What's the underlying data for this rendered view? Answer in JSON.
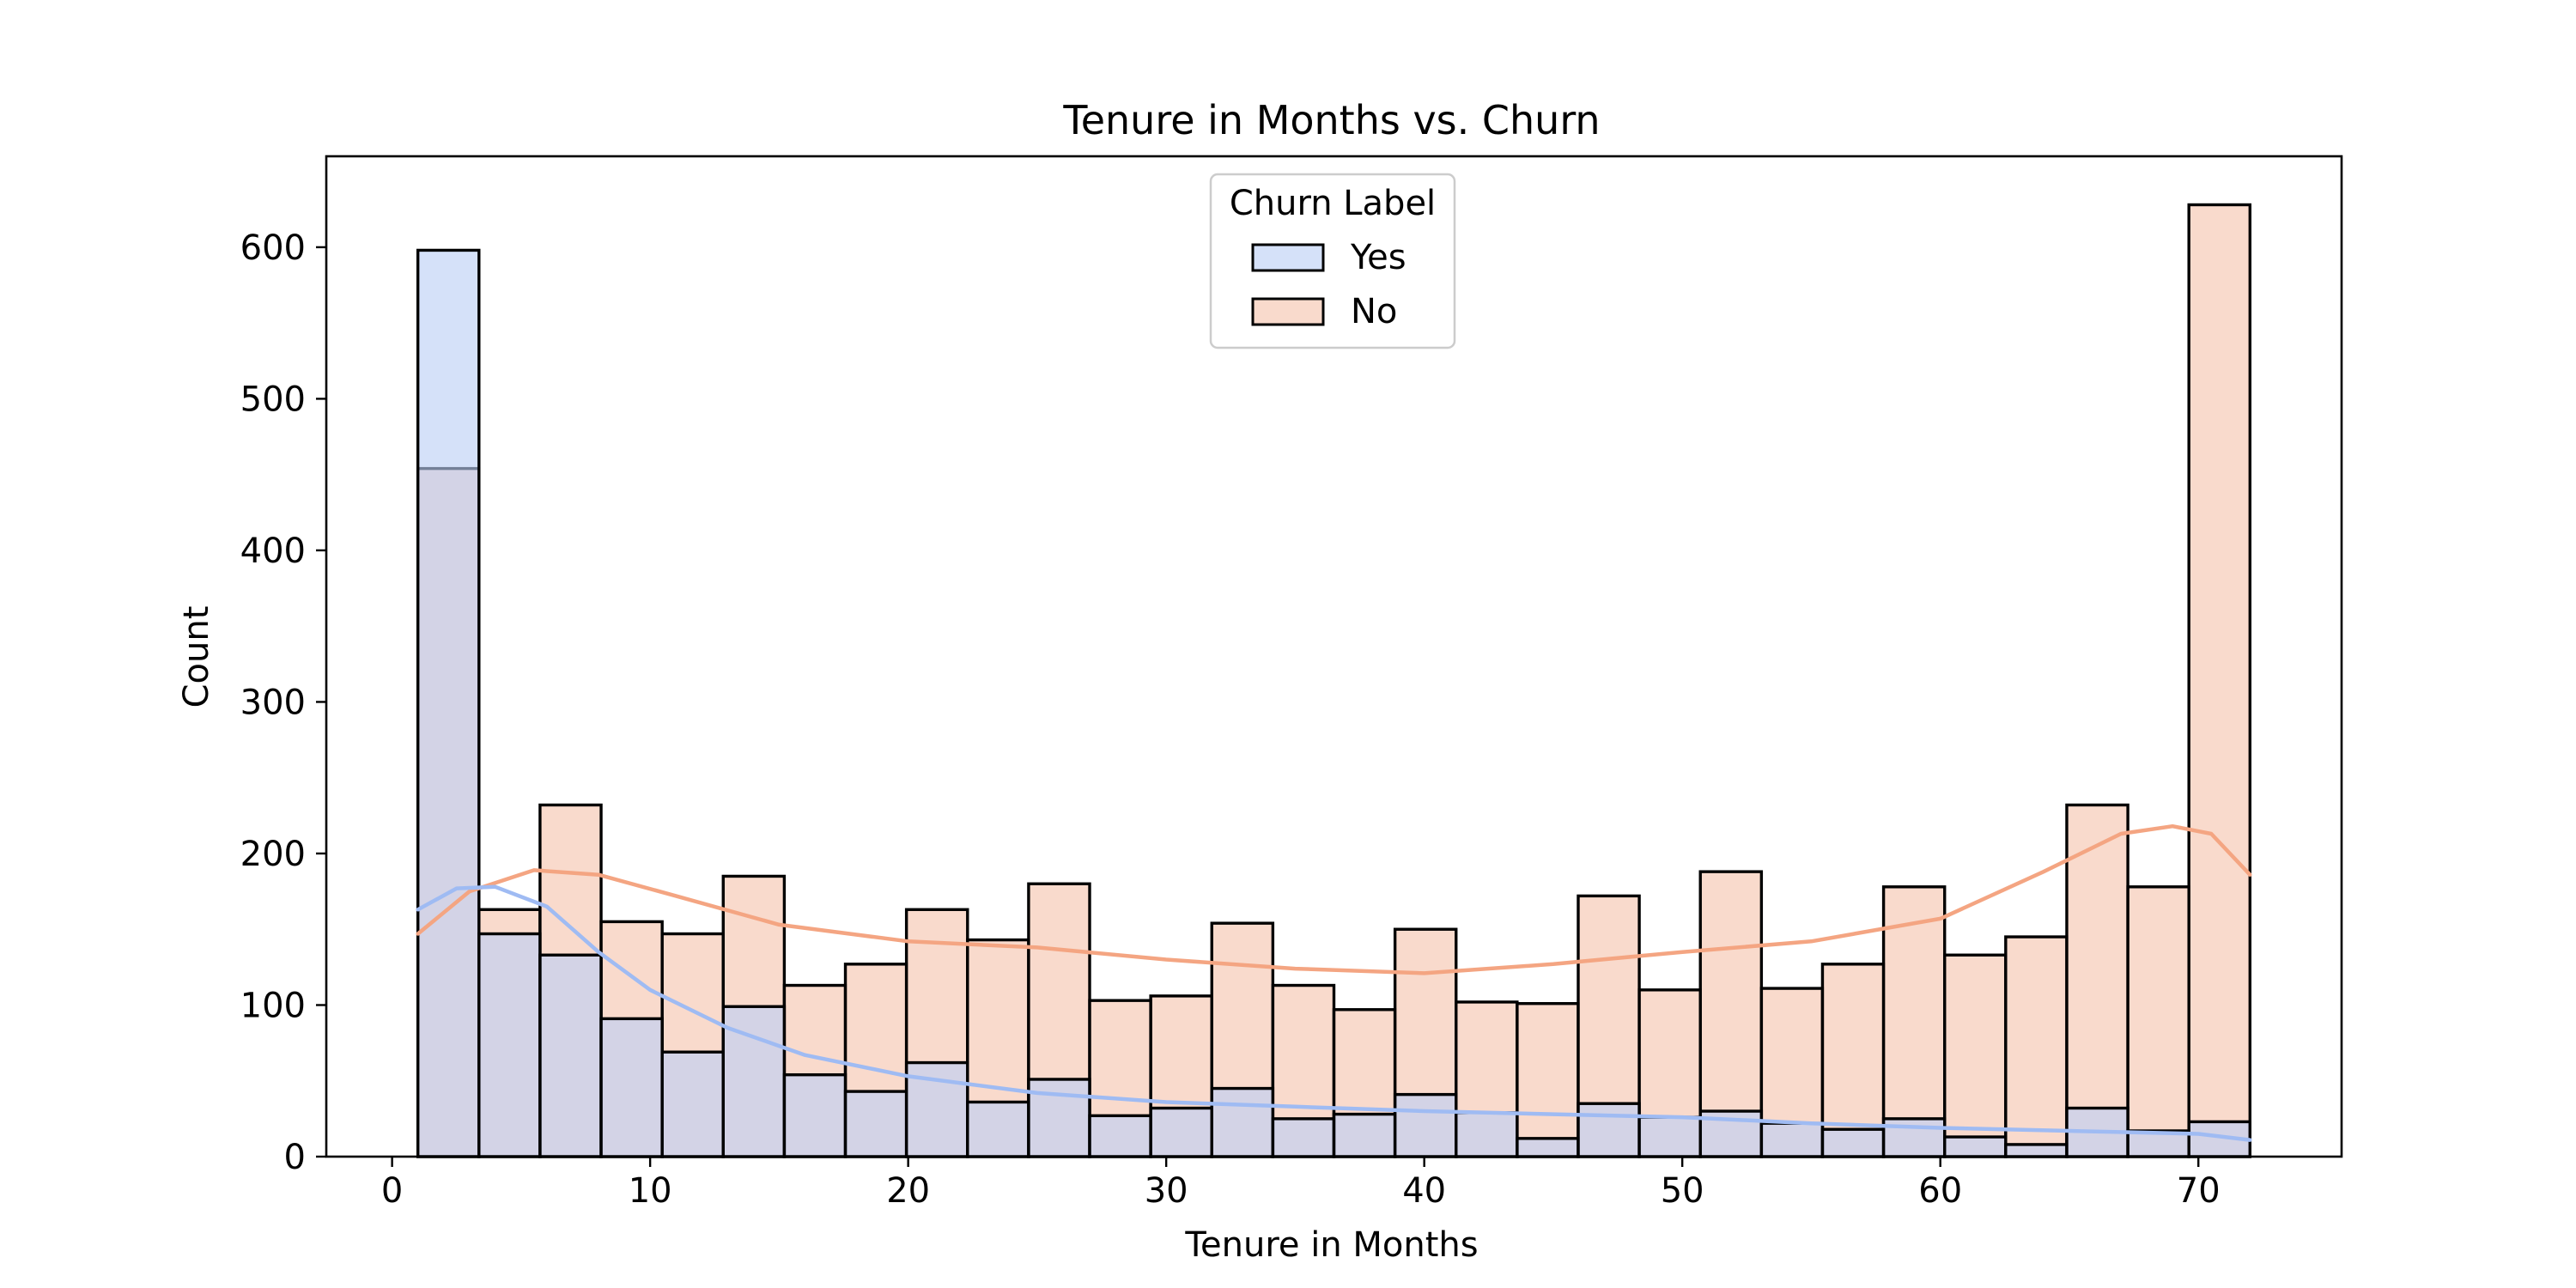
{
  "chart_data": {
    "type": "bar",
    "title": "Tenure in Months vs. Churn",
    "xlabel": "Tenure in Months",
    "ylabel": "Count",
    "xlim": [
      -2.55,
      75.55
    ],
    "ylim": [
      0,
      660
    ],
    "xticks": [
      0,
      10,
      20,
      30,
      40,
      50,
      60,
      70
    ],
    "yticks": [
      0,
      100,
      200,
      300,
      400,
      500,
      600
    ],
    "grid": false,
    "legend": {
      "title": "Churn Label",
      "placement": "top-center"
    },
    "bin_edges": [
      1,
      3.367,
      5.733,
      8.1,
      10.467,
      12.833,
      15.2,
      17.567,
      19.933,
      22.3,
      24.667,
      27.033,
      29.4,
      31.767,
      34.133,
      36.5,
      38.867,
      41.233,
      43.6,
      45.967,
      48.333,
      50.7,
      53.067,
      55.433,
      57.8,
      60.167,
      62.533,
      64.9,
      67.267,
      69.633,
      72
    ],
    "series": [
      {
        "name": "No",
        "color": "#f6c4ad",
        "kde_color": "#f4a582",
        "values": [
          454,
          163,
          232,
          155,
          147,
          185,
          113,
          127,
          163,
          143,
          180,
          103,
          106,
          154,
          113,
          97,
          150,
          102,
          101,
          172,
          110,
          188,
          111,
          127,
          178,
          133,
          145,
          232,
          178,
          628
        ],
        "kde": [
          [
            1,
            147
          ],
          [
            3,
            175
          ],
          [
            5.5,
            189
          ],
          [
            8,
            186
          ],
          [
            11,
            172
          ],
          [
            15,
            153
          ],
          [
            20,
            142
          ],
          [
            25,
            138
          ],
          [
            30,
            130
          ],
          [
            35,
            124
          ],
          [
            40,
            121
          ],
          [
            45,
            127
          ],
          [
            50,
            135
          ],
          [
            55,
            142
          ],
          [
            60,
            157
          ],
          [
            64,
            188
          ],
          [
            67,
            213
          ],
          [
            69,
            218
          ],
          [
            70.5,
            213
          ],
          [
            72,
            186
          ]
        ]
      },
      {
        "name": "Yes",
        "color": "#bccff5",
        "kde_color": "#9fbbf3",
        "values": [
          598,
          147,
          133,
          91,
          69,
          99,
          54,
          43,
          62,
          36,
          51,
          27,
          32,
          45,
          25,
          28,
          41,
          29,
          12,
          35,
          26,
          30,
          22,
          18,
          25,
          13,
          8,
          32,
          17,
          23
        ],
        "kde": [
          [
            1,
            163
          ],
          [
            2.5,
            177
          ],
          [
            4,
            178
          ],
          [
            6,
            165
          ],
          [
            8,
            135
          ],
          [
            10,
            110
          ],
          [
            13,
            85
          ],
          [
            16,
            67
          ],
          [
            20,
            53
          ],
          [
            25,
            42
          ],
          [
            30,
            36
          ],
          [
            35,
            33
          ],
          [
            40,
            30
          ],
          [
            45,
            28
          ],
          [
            50,
            26
          ],
          [
            55,
            22
          ],
          [
            60,
            19
          ],
          [
            65,
            17
          ],
          [
            70,
            15
          ],
          [
            72,
            11
          ]
        ]
      }
    ]
  }
}
